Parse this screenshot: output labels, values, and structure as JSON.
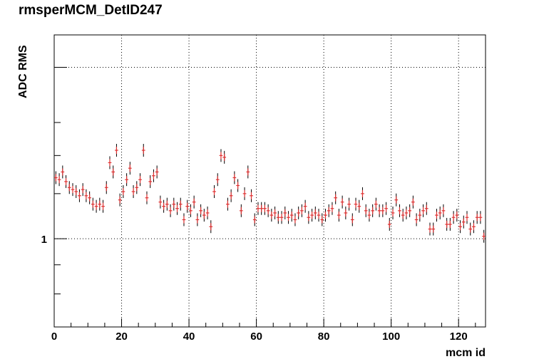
{
  "chart_data": {
    "type": "scatter",
    "title": "rmsperMCM_DetID247",
    "xlabel": "mcm id",
    "ylabel": "ADC RMS",
    "xlim": [
      0,
      128
    ],
    "ylim": [
      0.7,
      2.28
    ],
    "y_scale": "log",
    "grid": "dotted",
    "legend": "none",
    "x_ticks": [
      0,
      20,
      40,
      60,
      80,
      100,
      120
    ],
    "x_tick_labels": [
      "0",
      "20",
      "40",
      "60",
      "80",
      "100",
      "120"
    ],
    "y_tick_labels": [
      {
        "value": 1,
        "label": "1"
      }
    ],
    "marker_color": "#e03030",
    "errorbar_color": "#000000",
    "x": [
      0,
      1,
      2,
      3,
      4,
      5,
      6,
      7,
      8,
      9,
      10,
      11,
      12,
      13,
      14,
      15,
      16,
      17,
      18,
      19,
      20,
      21,
      22,
      23,
      24,
      25,
      26,
      27,
      28,
      29,
      30,
      31,
      32,
      33,
      34,
      35,
      36,
      37,
      38,
      39,
      40,
      41,
      42,
      43,
      44,
      45,
      46,
      47,
      48,
      49,
      50,
      51,
      52,
      53,
      54,
      55,
      56,
      57,
      58,
      59,
      60,
      61,
      62,
      63,
      64,
      65,
      66,
      67,
      68,
      69,
      70,
      71,
      72,
      73,
      74,
      75,
      76,
      77,
      78,
      79,
      80,
      81,
      82,
      83,
      84,
      85,
      86,
      87,
      88,
      89,
      90,
      91,
      92,
      93,
      94,
      95,
      96,
      97,
      98,
      99,
      100,
      101,
      102,
      103,
      104,
      105,
      106,
      107,
      108,
      109,
      110,
      111,
      112,
      113,
      114,
      115,
      116,
      117,
      118,
      119,
      120,
      121,
      122,
      123,
      124,
      125,
      126,
      127
    ],
    "y": [
      1.28,
      1.27,
      1.31,
      1.26,
      1.23,
      1.22,
      1.21,
      1.19,
      1.22,
      1.19,
      1.18,
      1.15,
      1.14,
      1.15,
      1.14,
      1.23,
      1.36,
      1.31,
      1.43,
      1.17,
      1.21,
      1.27,
      1.33,
      1.21,
      1.23,
      1.27,
      1.43,
      1.18,
      1.26,
      1.29,
      1.31,
      1.16,
      1.14,
      1.15,
      1.12,
      1.15,
      1.13,
      1.15,
      1.08,
      1.14,
      1.12,
      1.16,
      1.08,
      1.12,
      1.1,
      1.11,
      1.05,
      1.21,
      1.27,
      1.4,
      1.39,
      1.15,
      1.19,
      1.28,
      1.24,
      1.12,
      1.2,
      1.31,
      1.19,
      1.08,
      1.13,
      1.13,
      1.13,
      1.12,
      1.1,
      1.11,
      1.09,
      1.09,
      1.11,
      1.09,
      1.1,
      1.08,
      1.11,
      1.12,
      1.14,
      1.09,
      1.1,
      1.11,
      1.1,
      1.08,
      1.1,
      1.12,
      1.13,
      1.18,
      1.1,
      1.16,
      1.11,
      1.15,
      1.08,
      1.15,
      1.14,
      1.2,
      1.12,
      1.1,
      1.12,
      1.15,
      1.12,
      1.12,
      1.13,
      1.06,
      1.11,
      1.17,
      1.12,
      1.1,
      1.11,
      1.12,
      1.16,
      1.08,
      1.1,
      1.12,
      1.13,
      1.04,
      1.04,
      1.1,
      1.11,
      1.12,
      1.06,
      1.06,
      1.09,
      1.1,
      1.05,
      1.07,
      1.09,
      1.04,
      1.05,
      1.09,
      1.09,
      1.01
    ]
  }
}
